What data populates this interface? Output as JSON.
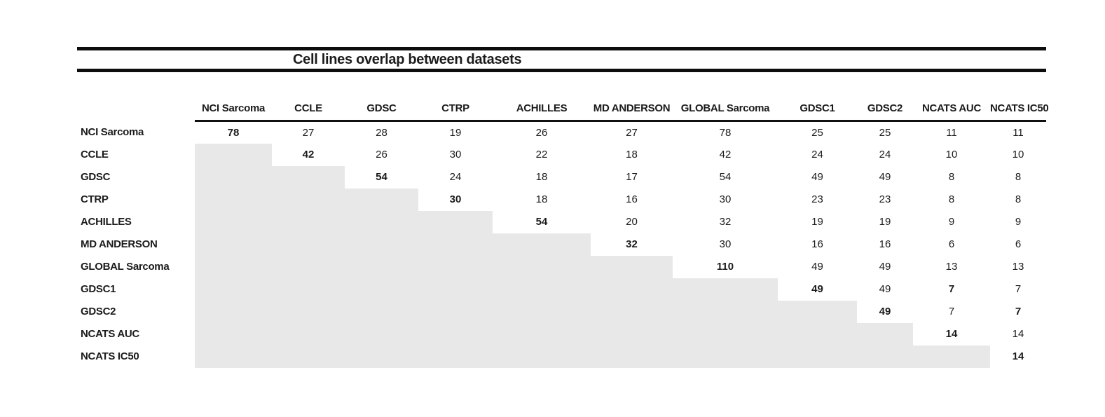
{
  "title": "Cell lines overlap between datasets",
  "table": {
    "columns": [
      "NCI Sarcoma",
      "CCLE",
      "GDSC",
      "CTRP",
      "ACHILLES",
      "MD ANDERSON",
      "GLOBAL Sarcoma",
      "GDSC1",
      "GDSC2",
      "NCATS AUC",
      "NCATS IC50"
    ],
    "rows": [
      {
        "label": "NCI Sarcoma",
        "values": [
          78,
          27,
          28,
          19,
          26,
          27,
          78,
          25,
          25,
          11,
          11
        ]
      },
      {
        "label": "CCLE",
        "values": [
          null,
          42,
          26,
          30,
          22,
          18,
          42,
          24,
          24,
          10,
          10
        ]
      },
      {
        "label": "GDSC",
        "values": [
          null,
          null,
          54,
          24,
          18,
          17,
          54,
          49,
          49,
          8,
          8
        ]
      },
      {
        "label": "CTRP",
        "values": [
          null,
          null,
          null,
          30,
          18,
          16,
          30,
          23,
          23,
          8,
          8
        ]
      },
      {
        "label": "ACHILLES",
        "values": [
          null,
          null,
          null,
          null,
          54,
          20,
          32,
          19,
          19,
          9,
          9
        ]
      },
      {
        "label": "MD ANDERSON",
        "values": [
          null,
          null,
          null,
          null,
          null,
          32,
          30,
          16,
          16,
          6,
          6
        ]
      },
      {
        "label": "GLOBAL Sarcoma",
        "values": [
          null,
          null,
          null,
          null,
          null,
          null,
          110,
          49,
          49,
          13,
          13
        ]
      },
      {
        "label": "GDSC1",
        "values": [
          null,
          null,
          null,
          null,
          null,
          null,
          null,
          49,
          49,
          7,
          7
        ]
      },
      {
        "label": "GDSC2",
        "values": [
          null,
          null,
          null,
          null,
          null,
          null,
          null,
          null,
          49,
          7,
          7
        ]
      },
      {
        "label": "NCATS AUC",
        "values": [
          null,
          null,
          null,
          null,
          null,
          null,
          null,
          null,
          null,
          14,
          14
        ]
      },
      {
        "label": "NCATS IC50",
        "values": [
          null,
          null,
          null,
          null,
          null,
          null,
          null,
          null,
          null,
          null,
          14
        ]
      }
    ],
    "extra_bold_cells": [
      [
        7,
        9
      ],
      [
        8,
        10
      ]
    ]
  },
  "colors": {
    "shade": "#e8e8e8",
    "rule": "#0d0d0d",
    "text": "#1b1b1b"
  },
  "chart_data": {
    "type": "table",
    "title": "Cell lines overlap between datasets",
    "columns": [
      "NCI Sarcoma",
      "CCLE",
      "GDSC",
      "CTRP",
      "ACHILLES",
      "MD ANDERSON",
      "GLOBAL Sarcoma",
      "GDSC1",
      "GDSC2",
      "NCATS AUC",
      "NCATS IC50"
    ],
    "row_labels": [
      "NCI Sarcoma",
      "CCLE",
      "GDSC",
      "CTRP",
      "ACHILLES",
      "MD ANDERSON",
      "GLOBAL Sarcoma",
      "GDSC1",
      "GDSC2",
      "NCATS AUC",
      "NCATS IC50"
    ],
    "matrix": [
      [
        78,
        27,
        28,
        19,
        26,
        27,
        78,
        25,
        25,
        11,
        11
      ],
      [
        null,
        42,
        26,
        30,
        22,
        18,
        42,
        24,
        24,
        10,
        10
      ],
      [
        null,
        null,
        54,
        24,
        18,
        17,
        54,
        49,
        49,
        8,
        8
      ],
      [
        null,
        null,
        null,
        30,
        18,
        16,
        30,
        23,
        23,
        8,
        8
      ],
      [
        null,
        null,
        null,
        null,
        54,
        20,
        32,
        19,
        19,
        9,
        9
      ],
      [
        null,
        null,
        null,
        null,
        null,
        32,
        30,
        16,
        16,
        6,
        6
      ],
      [
        null,
        null,
        null,
        null,
        null,
        null,
        110,
        49,
        49,
        13,
        13
      ],
      [
        null,
        null,
        null,
        null,
        null,
        null,
        null,
        49,
        49,
        7,
        7
      ],
      [
        null,
        null,
        null,
        null,
        null,
        null,
        null,
        null,
        49,
        7,
        7
      ],
      [
        null,
        null,
        null,
        null,
        null,
        null,
        null,
        null,
        null,
        14,
        14
      ],
      [
        null,
        null,
        null,
        null,
        null,
        null,
        null,
        null,
        null,
        null,
        14
      ]
    ],
    "layout_notes": "Upper-triangular overlap matrix; diagonal self-overlap counts are bold; lower triangle is shaded light gray with no values; extra bold cells at GDSC1/NCATS AUC and GDSC2/NCATS IC50."
  }
}
